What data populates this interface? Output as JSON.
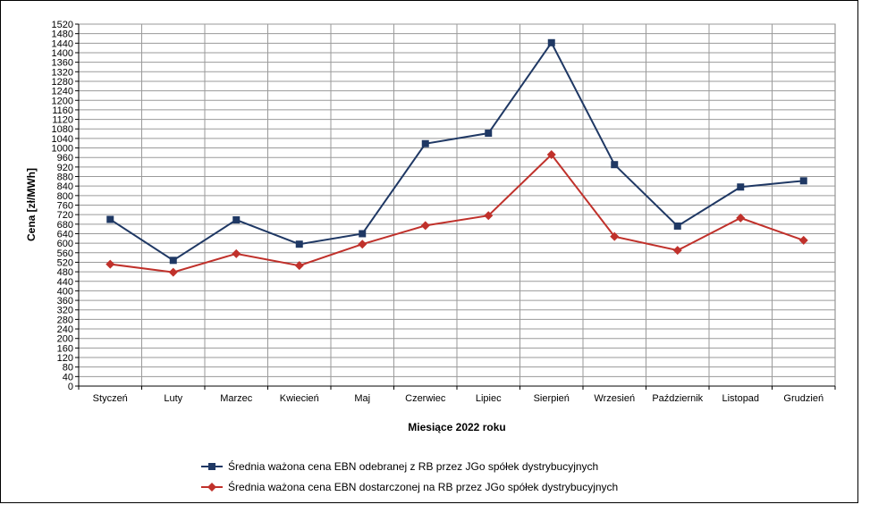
{
  "chart_data": {
    "type": "line",
    "xlabel": "Miesiące 2022  roku",
    "ylabel": "Cena [zł/MWh]",
    "ylim": [
      0,
      1520
    ],
    "ytick_step": 40,
    "grid": true,
    "legend_position": "bottom",
    "categories": [
      "Styczeń",
      "Luty",
      "Marzec",
      "Kwiecień",
      "Maj",
      "Czerwiec",
      "Lipiec",
      "Sierpień",
      "Wrzesień",
      "Październik",
      "Listopad",
      "Grudzień"
    ],
    "series": [
      {
        "name": "Średnia ważona cena EBN odebranej z RB przez JGo spółek dystrybucyjnych",
        "color": "#1f3864",
        "marker": "square",
        "values": [
          700,
          528,
          698,
          596,
          640,
          1018,
          1062,
          1442,
          930,
          672,
          836,
          862
        ]
      },
      {
        "name": "Średnia ważona cena EBN dostarczonej na RB przez JGo spółek dystrybucyjnych",
        "color": "#c0312b",
        "marker": "diamond",
        "values": [
          512,
          478,
          556,
          506,
          596,
          674,
          716,
          972,
          628,
          570,
          706,
          612
        ]
      }
    ]
  }
}
